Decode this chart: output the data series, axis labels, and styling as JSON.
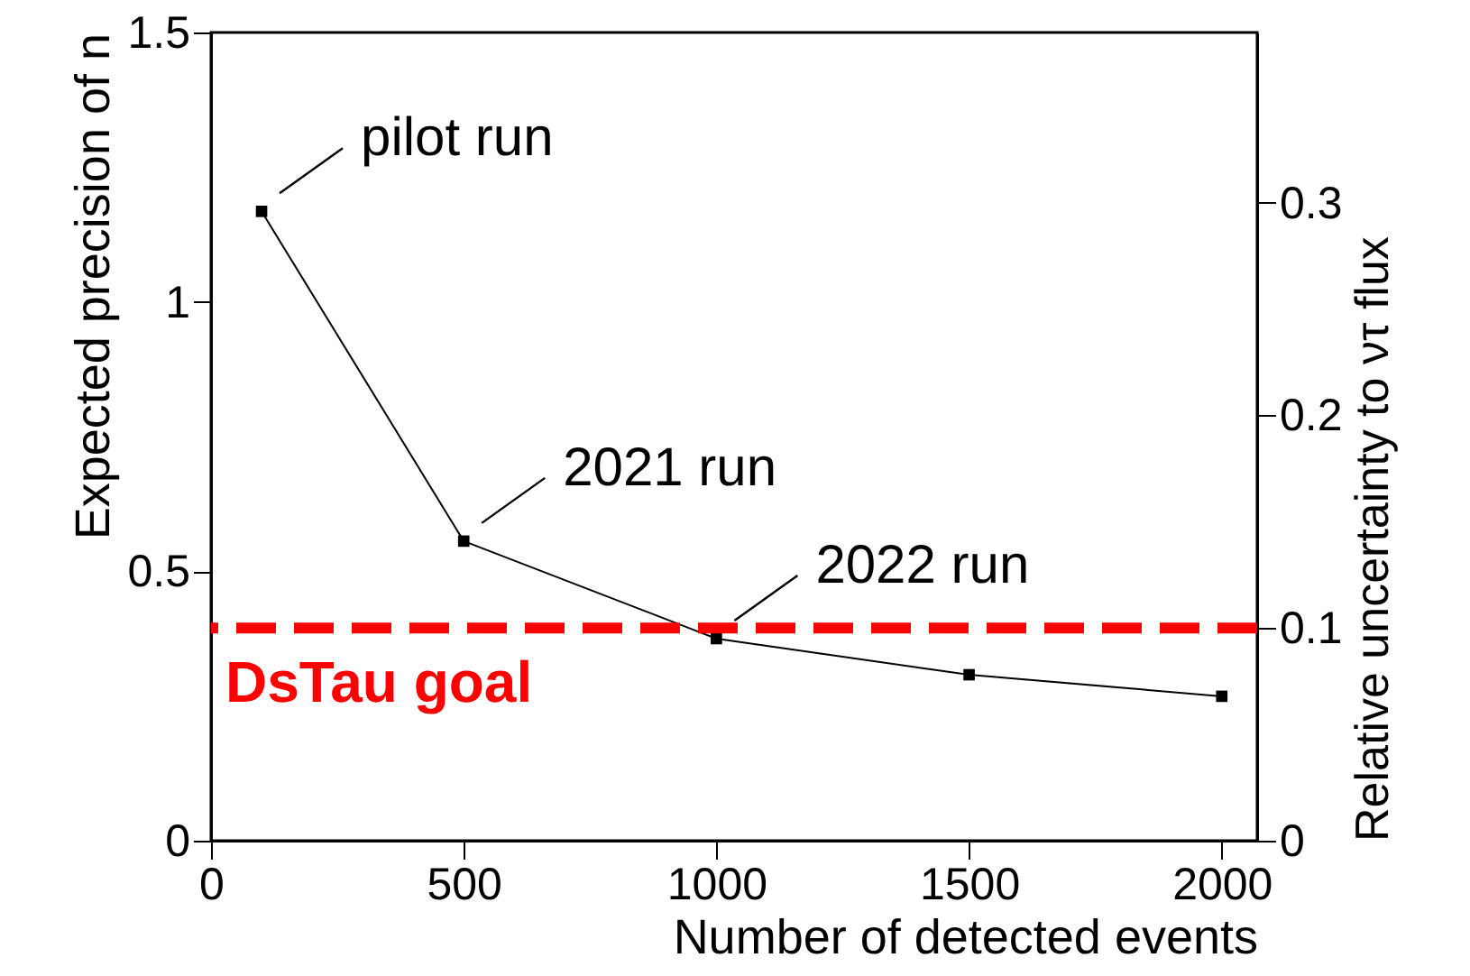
{
  "chart_data": {
    "type": "line",
    "xlabel": "Number of detected events",
    "ylabel": "Expected precision of n",
    "y2label": "Relative uncertainty to ντ flux",
    "x": [
      100,
      500,
      1000,
      1500,
      2000
    ],
    "series": [
      {
        "color": "#000000",
        "values": [
          1.168,
          0.556,
          0.375,
          0.308,
          0.268
        ]
      }
    ],
    "xlim": [
      0,
      2070
    ],
    "xticks": [
      0,
      500,
      1000,
      1500,
      2000
    ],
    "ylim": [
      0,
      1.5
    ],
    "yticks": [
      0,
      0.5,
      1,
      1.5
    ],
    "y2lim": [
      0,
      0.38
    ],
    "y2ticks": [
      0,
      0.1,
      0.2,
      0.3
    ],
    "marker": "square",
    "grid": false,
    "ref_lines": [
      {
        "axis": "y2",
        "value": 0.1,
        "label": "DsTau goal",
        "color": "#ff0000",
        "line_style": "dashed"
      }
    ],
    "annotations": [
      {
        "text": "pilot run",
        "x": 100,
        "y": 1.168
      },
      {
        "text": "2021 run",
        "x": 500,
        "y": 0.556
      },
      {
        "text": "2022 run",
        "x": 1000,
        "y": 0.375
      }
    ]
  }
}
